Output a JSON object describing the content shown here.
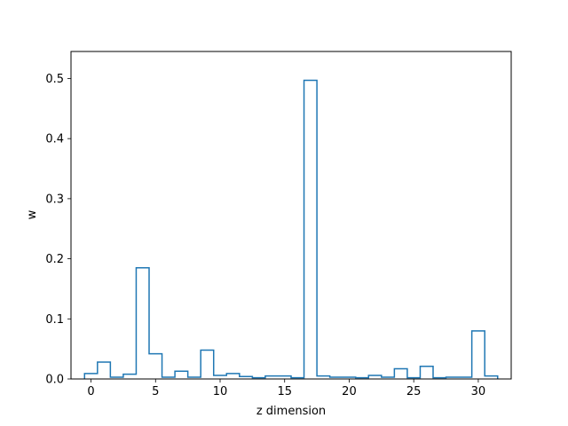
{
  "chart_data": {
    "type": "line",
    "style": "step",
    "title": "",
    "xlabel": "z dimension",
    "ylabel": "w",
    "xlim": [
      -1.55,
      32.55
    ],
    "ylim": [
      0,
      0.545
    ],
    "x_ticks": [
      0,
      5,
      10,
      15,
      20,
      25,
      30
    ],
    "y_ticks": [
      0.0,
      0.1,
      0.2,
      0.3,
      0.4,
      0.5
    ],
    "y_tick_labels": [
      "0.0",
      "0.1",
      "0.2",
      "0.3",
      "0.4",
      "0.5"
    ],
    "grid": false,
    "legend": "none",
    "line_color": "#1f77b4",
    "series": [
      {
        "x": [
          0,
          1,
          2,
          3,
          4,
          5,
          6,
          7,
          8,
          9,
          10,
          11,
          12,
          13,
          14,
          15,
          16,
          17,
          18,
          19,
          20,
          21,
          22,
          23,
          24,
          25,
          26,
          27,
          28,
          29,
          30,
          31
        ],
        "values": [
          0.009,
          0.028,
          0.003,
          0.008,
          0.185,
          0.042,
          0.003,
          0.013,
          0.003,
          0.048,
          0.006,
          0.009,
          0.004,
          0.002,
          0.005,
          0.005,
          0.002,
          0.497,
          0.005,
          0.003,
          0.003,
          0.002,
          0.006,
          0.003,
          0.017,
          0.002,
          0.021,
          0.002,
          0.003,
          0.003,
          0.08,
          0.005
        ]
      }
    ]
  }
}
